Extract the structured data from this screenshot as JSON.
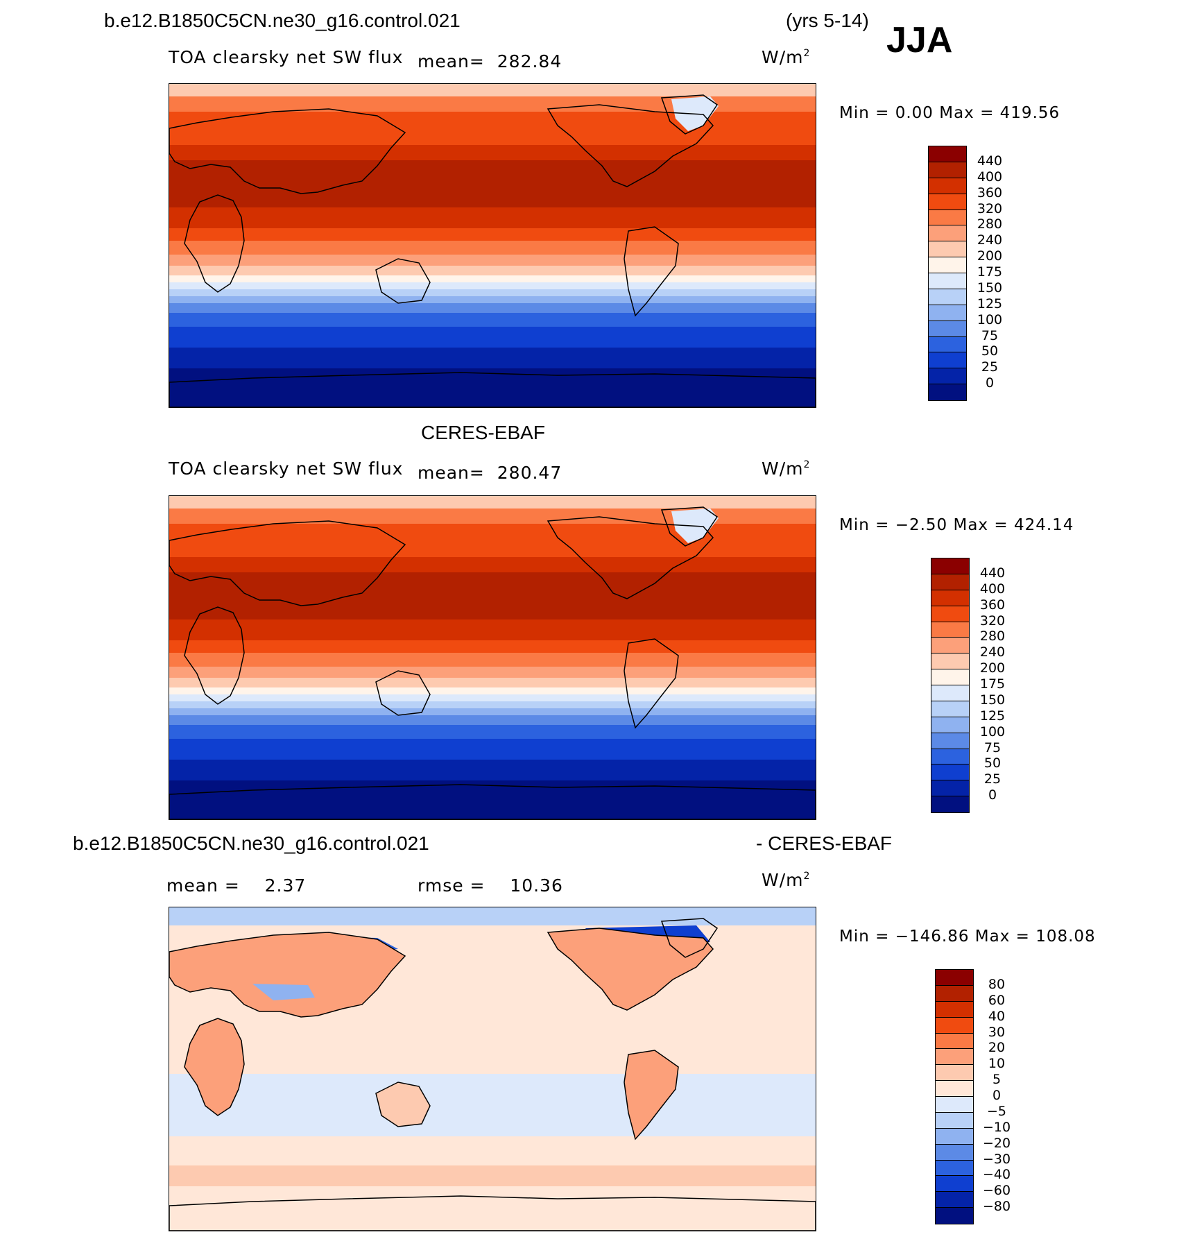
{
  "header": {
    "case": "b.e12.B1850C5CN.ne30_g16.control.021",
    "years": "(yrs 5-14)",
    "season": "JJA"
  },
  "colors": {
    "flux": [
      "#8b0000",
      "#b22100",
      "#d33000",
      "#f04b10",
      "#fa7a45",
      "#fca07a",
      "#fdcab0",
      "#fff4ea",
      "#dde9fb",
      "#b8d1f7",
      "#8fb2f0",
      "#5c8ae6",
      "#2c62df",
      "#0f3fd0",
      "#0423a8",
      "#011080"
    ],
    "diff": [
      "#8b0000",
      "#b22100",
      "#d33000",
      "#f04b10",
      "#fa7a45",
      "#fca07a",
      "#fdcab0",
      "#ffe7d8",
      "#dde9fb",
      "#b8d1f7",
      "#8fb2f0",
      "#5c8ae6",
      "#2c62df",
      "#0f3fd0",
      "#0423a8",
      "#011080"
    ]
  },
  "panels": [
    {
      "title": "",
      "variable": "TOA clearsky net SW flux",
      "mean_label": "mean=",
      "mean_value": "282.84",
      "unit_base": "W/m",
      "unit_exp": "2",
      "minmax": "Min =    0.00 Max = 419.56",
      "levels": [
        "440",
        "400",
        "360",
        "320",
        "280",
        "240",
        "200",
        "175",
        "150",
        "125",
        "100",
        "75",
        "50",
        "25",
        "0"
      ],
      "kind": "flux"
    },
    {
      "title": "CERES-EBAF",
      "variable": "TOA clearsky net SW flux",
      "mean_label": "mean=",
      "mean_value": "280.47",
      "unit_base": "W/m",
      "unit_exp": "2",
      "minmax": "Min =  −2.50 Max = 424.14",
      "levels": [
        "440",
        "400",
        "360",
        "320",
        "280",
        "240",
        "200",
        "175",
        "150",
        "125",
        "100",
        "75",
        "50",
        "25",
        "0"
      ],
      "kind": "flux"
    },
    {
      "title_left": "b.e12.B1850C5CN.ne30_g16.control.021",
      "title_right": "- CERES-EBAF",
      "mean_label": "mean =",
      "mean_value": "2.37",
      "rmse_label": "rmse =",
      "rmse_value": "10.36",
      "unit_base": "W/m",
      "unit_exp": "2",
      "minmax": "Min = −146.86 Max = 108.08",
      "levels": [
        "80",
        "60",
        "40",
        "30",
        "20",
        "10",
        "5",
        "0",
        "−5",
        "−10",
        "−20",
        "−30",
        "−40",
        "−60",
        "−80"
      ],
      "kind": "diff"
    }
  ]
}
